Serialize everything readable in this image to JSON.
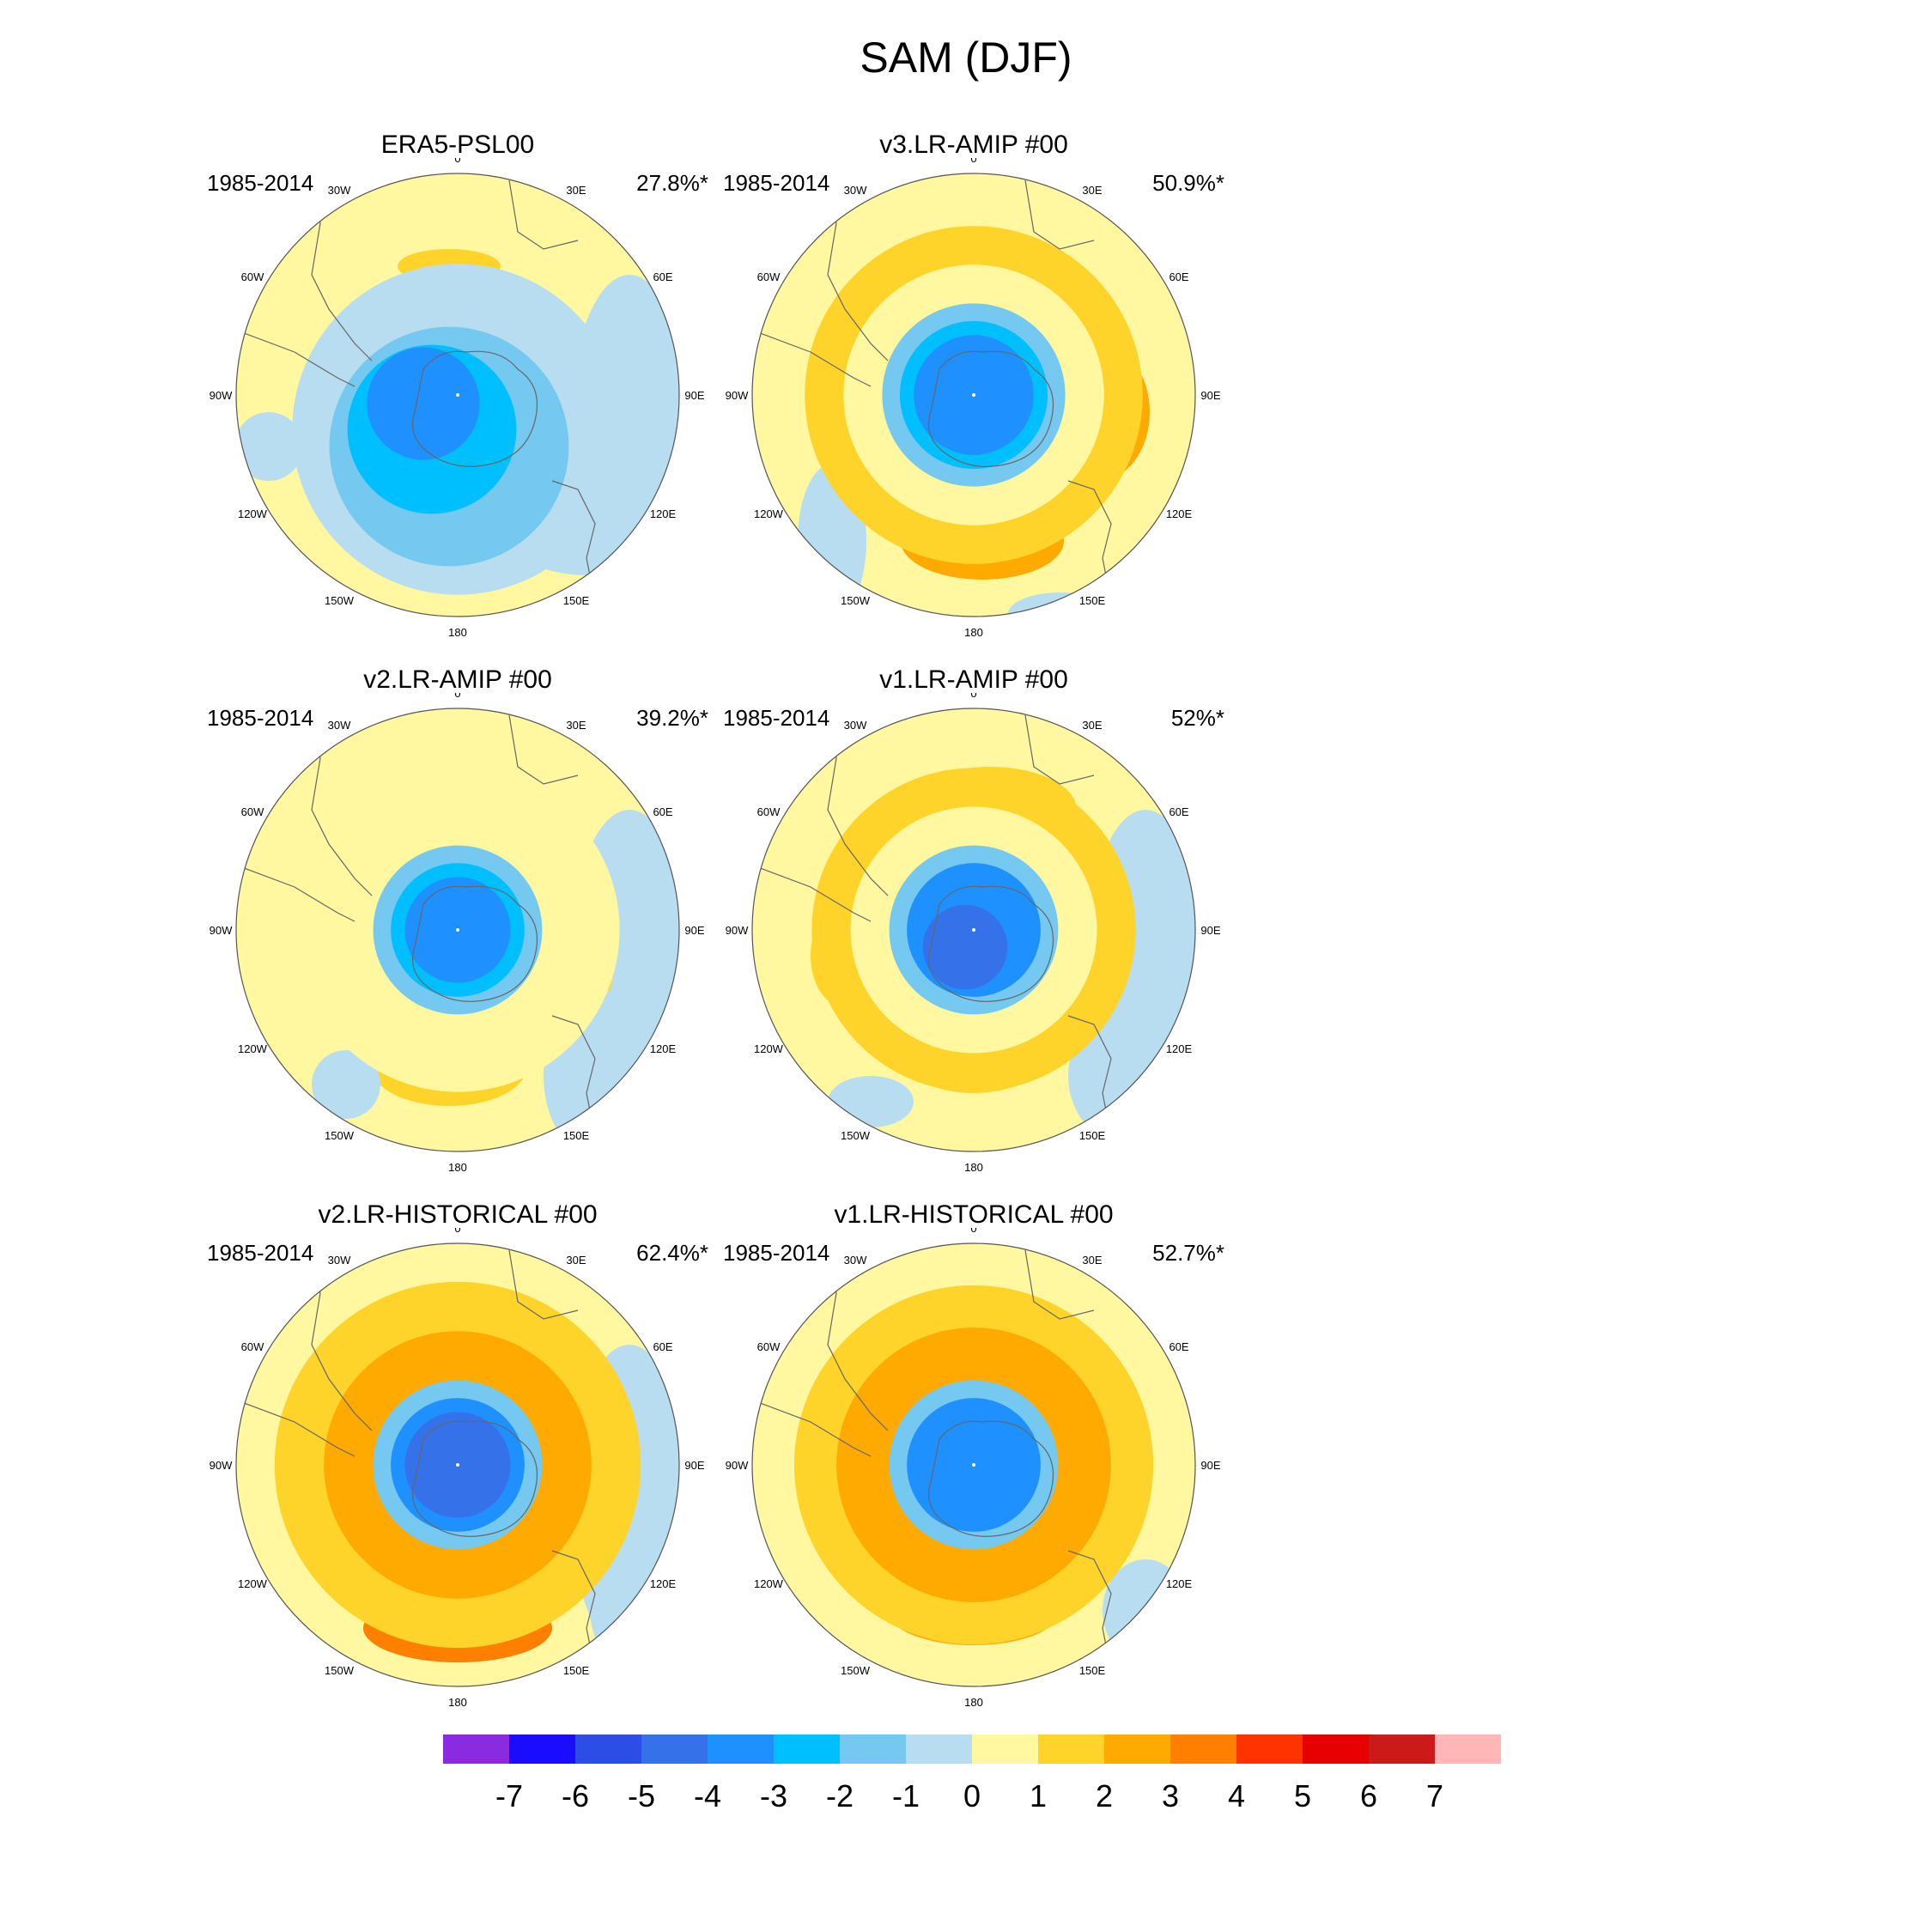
{
  "title": "SAM (DJF)",
  "panels": [
    {
      "id": "era5",
      "title": "ERA5-PSL00",
      "period": "1985-2014",
      "pct": "27.8%*"
    },
    {
      "id": "v3amip",
      "title": "v3.LR-AMIP  #00",
      "period": "1985-2014",
      "pct": "50.9%*"
    },
    {
      "id": "v2amip",
      "title": "v2.LR-AMIP  #00",
      "period": "1985-2014",
      "pct": "39.2%*"
    },
    {
      "id": "v1amip",
      "title": "v1.LR-AMIP  #00",
      "period": "1985-2014",
      "pct": "52%*"
    },
    {
      "id": "v2hist",
      "title": "v2.LR-HISTORICAL  #00",
      "period": "1985-2014",
      "pct": "62.4%*"
    },
    {
      "id": "v1hist",
      "title": "v1.LR-HISTORICAL  #00",
      "period": "1985-2014",
      "pct": "52.7%*"
    }
  ],
  "longitudes": [
    "0",
    "30E",
    "60E",
    "90E",
    "120E",
    "150E",
    "180",
    "150W",
    "120W",
    "90W",
    "60W",
    "30W"
  ],
  "colorbar": {
    "labels": [
      "-7",
      "-6",
      "-5",
      "-4",
      "-3",
      "-2",
      "-1",
      "0",
      "1",
      "2",
      "3",
      "4",
      "5",
      "6",
      "7"
    ],
    "colors": [
      "#8a2be2",
      "#1a0dff",
      "#2c4de8",
      "#3571e8",
      "#1e90ff",
      "#00bfff",
      "#75c8f0",
      "#b8ddf0",
      "#fff8a0",
      "#ffd42a",
      "#ffaa00",
      "#ff7f00",
      "#ff3300",
      "#e60000",
      "#cc1a1a",
      "#ffb6b6"
    ]
  }
}
